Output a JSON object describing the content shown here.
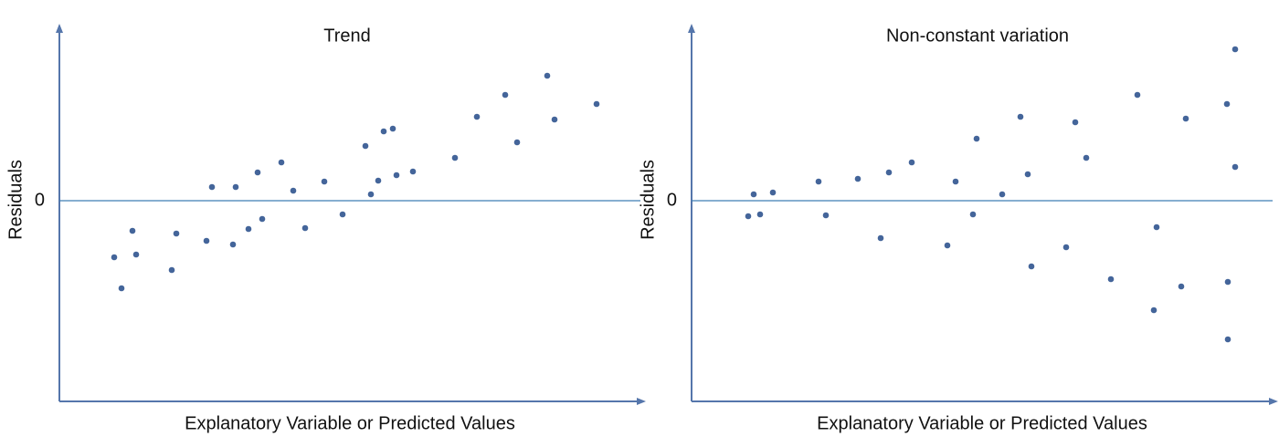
{
  "chart_data": [
    {
      "type": "scatter",
      "title": "Trend",
      "x_label": "Explanatory Variable or Predicted Values",
      "y_label": "Residuals",
      "x": [
        6.0,
        6.8,
        8.0,
        8.4,
        12.3,
        12.8,
        16.1,
        16.7,
        19.0,
        19.3,
        20.7,
        21.7,
        22.2,
        24.3,
        25.6,
        26.9,
        29.0,
        31.0,
        33.5,
        34.1,
        34.9,
        35.5,
        36.5,
        36.9,
        38.7,
        43.3,
        45.7,
        48.8,
        50.1,
        53.4,
        54.2,
        58.8
      ],
      "values": [
        -6.2,
        -9.6,
        -3.3,
        -5.9,
        -7.6,
        -3.6,
        -4.4,
        1.5,
        -4.8,
        1.5,
        -3.1,
        3.1,
        -2.0,
        4.2,
        1.1,
        -3.0,
        2.1,
        -1.5,
        6.0,
        0.7,
        2.2,
        7.6,
        7.9,
        2.8,
        3.2,
        4.7,
        9.2,
        11.6,
        6.4,
        13.7,
        8.9,
        10.6
      ],
      "color": "#44659a",
      "xlim": [
        0,
        64
      ],
      "ylim": [
        -22,
        19
      ],
      "yticks": [
        0
      ],
      "grid": true
    },
    {
      "type": "scatter",
      "title": "Non-constant variation",
      "x_label": "Explanatory Variable or Predicted Values",
      "y_label": "Residuals",
      "x": [
        6.2,
        6.8,
        7.5,
        8.9,
        13.9,
        14.7,
        18.2,
        20.7,
        21.6,
        24.1,
        28.0,
        28.9,
        30.8,
        31.2,
        34.0,
        36.0,
        36.8,
        37.2,
        41.0,
        42.0,
        43.2,
        45.9,
        48.8,
        50.6,
        50.9,
        53.6,
        54.1,
        58.6,
        58.7,
        58.7,
        59.5,
        59.5
      ],
      "values": [
        -1.7,
        0.7,
        -1.5,
        0.9,
        2.1,
        -1.6,
        2.4,
        -4.1,
        3.1,
        4.2,
        -4.9,
        2.1,
        -1.5,
        6.8,
        0.7,
        9.2,
        2.9,
        -7.2,
        -5.1,
        8.6,
        4.7,
        -8.6,
        11.6,
        -12.0,
        -2.9,
        -9.4,
        9.0,
        10.6,
        -8.9,
        -15.2,
        16.6,
        3.7
      ],
      "color": "#44659a",
      "xlim": [
        0,
        64
      ],
      "ylim": [
        -22,
        19
      ],
      "yticks": [
        0
      ],
      "grid": true
    }
  ]
}
